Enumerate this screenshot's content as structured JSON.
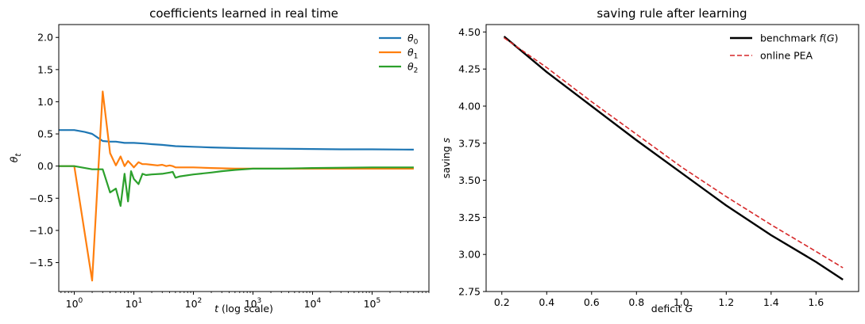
{
  "chart_data": [
    {
      "type": "line",
      "title": "coefficients learned in real time",
      "xlabel": "t  (log scale)",
      "ylabel": "θ_t",
      "xscale": "log",
      "xlim": [
        0.55,
        900000
      ],
      "ylim": [
        -1.95,
        2.2
      ],
      "xticks": [
        {
          "value": 1,
          "mant": "10",
          "exp": "0"
        },
        {
          "value": 10,
          "mant": "10",
          "exp": "1"
        },
        {
          "value": 100,
          "mant": "10",
          "exp": "2"
        },
        {
          "value": 1000,
          "mant": "10",
          "exp": "3"
        },
        {
          "value": 10000,
          "mant": "10",
          "exp": "4"
        },
        {
          "value": 100000,
          "mant": "10",
          "exp": "5"
        }
      ],
      "yticks": [
        {
          "value": -1.5,
          "label": "−1.5"
        },
        {
          "value": -1.0,
          "label": "−1.0"
        },
        {
          "value": -0.5,
          "label": "−0.5"
        },
        {
          "value": 0.0,
          "label": "0.0"
        },
        {
          "value": 0.5,
          "label": "0.5"
        },
        {
          "value": 1.0,
          "label": "1.0"
        },
        {
          "value": 1.5,
          "label": "1.5"
        },
        {
          "value": 2.0,
          "label": "2.0"
        }
      ],
      "grid": false,
      "legend_position": "top-right",
      "series": [
        {
          "name": "θ0",
          "sym": "θ",
          "sub": "0",
          "color": "#1f77b4",
          "x": [
            0.55,
            1,
            1.5,
            2,
            3,
            4,
            5,
            7,
            10,
            15,
            20,
            30,
            50,
            100,
            200,
            500,
            1000,
            3000,
            10000,
            30000,
            100000,
            500000
          ],
          "y": [
            0.56,
            0.56,
            0.53,
            0.5,
            0.39,
            0.38,
            0.38,
            0.36,
            0.36,
            0.35,
            0.34,
            0.33,
            0.31,
            0.3,
            0.29,
            0.28,
            0.275,
            0.27,
            0.265,
            0.26,
            0.26,
            0.255
          ]
        },
        {
          "name": "θ1",
          "sym": "θ",
          "sub": "1",
          "color": "#ff7f0e",
          "x": [
            0.55,
            1,
            2,
            3,
            4,
            5,
            6,
            7,
            8,
            9,
            10,
            12,
            14,
            16,
            20,
            25,
            30,
            35,
            40,
            45,
            50,
            60,
            100,
            200,
            500,
            1000,
            10000,
            500000
          ],
          "y": [
            0.0,
            0.0,
            -1.78,
            1.16,
            0.2,
            0.01,
            0.15,
            0.0,
            0.08,
            0.03,
            -0.02,
            0.06,
            0.03,
            0.03,
            0.02,
            0.01,
            0.02,
            0.0,
            0.01,
            0.0,
            -0.02,
            -0.02,
            -0.02,
            -0.03,
            -0.04,
            -0.04,
            -0.04,
            -0.04
          ]
        },
        {
          "name": "θ2",
          "sym": "θ",
          "sub": "2",
          "color": "#2ca02c",
          "x": [
            0.55,
            1,
            2,
            3,
            4,
            5,
            6,
            7,
            8,
            9,
            10,
            12,
            14,
            16,
            20,
            30,
            40,
            45,
            50,
            60,
            100,
            200,
            300,
            500,
            1000,
            3000,
            10000,
            100000,
            500000
          ],
          "y": [
            0.0,
            0.0,
            -0.05,
            -0.05,
            -0.41,
            -0.35,
            -0.62,
            -0.12,
            -0.55,
            -0.08,
            -0.2,
            -0.28,
            -0.12,
            -0.14,
            -0.13,
            -0.12,
            -0.1,
            -0.09,
            -0.18,
            -0.16,
            -0.13,
            -0.1,
            -0.08,
            -0.06,
            -0.04,
            -0.04,
            -0.03,
            -0.02,
            -0.02
          ]
        }
      ]
    },
    {
      "type": "line",
      "title": "saving rule after learning",
      "xlabel": "deficit G",
      "ylabel": "saving s",
      "xlim": [
        0.13,
        1.79
      ],
      "ylim": [
        2.75,
        4.55
      ],
      "xticks": [
        {
          "value": 0.2,
          "label": "0.2"
        },
        {
          "value": 0.4,
          "label": "0.4"
        },
        {
          "value": 0.6,
          "label": "0.6"
        },
        {
          "value": 0.8,
          "label": "0.8"
        },
        {
          "value": 1.0,
          "label": "1.0"
        },
        {
          "value": 1.2,
          "label": "1.2"
        },
        {
          "value": 1.4,
          "label": "1.4"
        },
        {
          "value": 1.6,
          "label": "1.6"
        }
      ],
      "yticks": [
        {
          "value": 2.75,
          "label": "2.75"
        },
        {
          "value": 3.0,
          "label": "3.00"
        },
        {
          "value": 3.25,
          "label": "3.25"
        },
        {
          "value": 3.5,
          "label": "3.50"
        },
        {
          "value": 3.75,
          "label": "3.75"
        },
        {
          "value": 4.0,
          "label": "4.00"
        },
        {
          "value": 4.25,
          "label": "4.25"
        },
        {
          "value": 4.5,
          "label": "4.50"
        }
      ],
      "grid": false,
      "legend_position": "top-right",
      "series": [
        {
          "name": "benchmark f(G)",
          "color": "#000000",
          "dash": "solid",
          "x": [
            0.21,
            0.4,
            0.6,
            0.8,
            1.0,
            1.2,
            1.4,
            1.6,
            1.72
          ],
          "y": [
            4.47,
            4.23,
            4.0,
            3.77,
            3.55,
            3.33,
            3.13,
            2.95,
            2.83
          ]
        },
        {
          "name": "online PEA",
          "color": "#d62728",
          "dash": "dashed",
          "x": [
            0.21,
            0.4,
            0.6,
            0.8,
            1.0,
            1.2,
            1.4,
            1.6,
            1.72
          ],
          "y": [
            4.46,
            4.26,
            4.03,
            3.81,
            3.59,
            3.39,
            3.2,
            3.02,
            2.91
          ]
        }
      ]
    }
  ]
}
